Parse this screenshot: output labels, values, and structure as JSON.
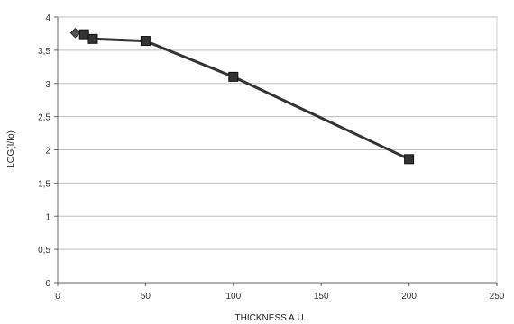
{
  "chart_data": {
    "type": "line",
    "title": "",
    "xlabel": "THICKNESS A.U.",
    "ylabel": "LOG(I/Io)",
    "xlim": [
      0,
      250
    ],
    "ylim": [
      0,
      4
    ],
    "x_ticks": [
      0,
      50,
      100,
      150,
      200,
      250
    ],
    "y_ticks": [
      0,
      0.5,
      1,
      1.5,
      2,
      2.5,
      3,
      3.5,
      4
    ],
    "x_tick_labels": [
      "0",
      "50",
      "100",
      "150",
      "200",
      "250"
    ],
    "y_tick_labels": [
      "0",
      "0,5",
      "1",
      "1,5",
      "2",
      "2,5",
      "3",
      "3,5",
      "4"
    ],
    "grid": "horizontal",
    "legend": "none",
    "series": [
      {
        "marker": "diamond",
        "color": "#555555",
        "points": [
          {
            "x": 10,
            "y": 3.76
          }
        ]
      },
      {
        "marker": "square",
        "color": "#333333",
        "points": [
          {
            "x": 15,
            "y": 3.74
          },
          {
            "x": 20,
            "y": 3.67
          },
          {
            "x": 50,
            "y": 3.64
          },
          {
            "x": 100,
            "y": 3.1
          },
          {
            "x": 200,
            "y": 1.86
          }
        ]
      }
    ]
  }
}
